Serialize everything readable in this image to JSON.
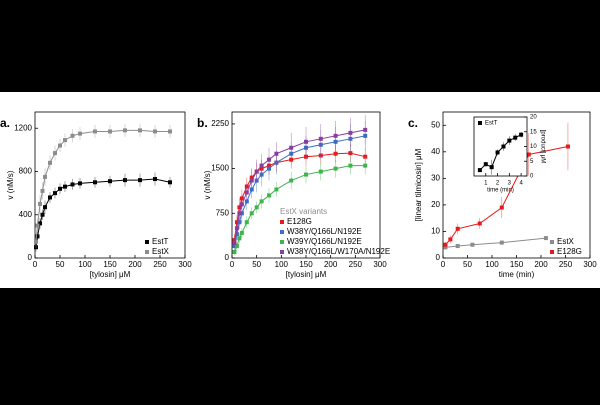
{
  "chart_data": [
    {
      "type": "scatter",
      "label": "a.",
      "xlabel": "[tylosin]  μM",
      "ylabel": "v (nM/s)",
      "xlim": [
        0,
        300
      ],
      "xticks": [
        0,
        50,
        100,
        150,
        200,
        250,
        300
      ],
      "ylim": [
        0,
        1350
      ],
      "yticks": [
        0,
        400,
        800,
        1200
      ],
      "legend": "lower right",
      "series": [
        {
          "name": "EstT",
          "color": "#000000",
          "x": [
            2,
            5,
            10,
            15,
            20,
            30,
            40,
            50,
            60,
            75,
            90,
            120,
            150,
            180,
            210,
            240,
            270
          ],
          "values": [
            100,
            200,
            320,
            400,
            470,
            560,
            600,
            640,
            660,
            680,
            690,
            700,
            710,
            720,
            720,
            730,
            700
          ],
          "errors": [
            40,
            40,
            50,
            50,
            60,
            50,
            50,
            50,
            50,
            50,
            50,
            50,
            50,
            60,
            60,
            60,
            50
          ]
        },
        {
          "name": "EstX",
          "color": "#8c8c8c",
          "x": [
            2,
            5,
            10,
            15,
            20,
            30,
            40,
            50,
            60,
            75,
            90,
            120,
            150,
            180,
            210,
            240,
            270
          ],
          "values": [
            150,
            300,
            500,
            620,
            750,
            880,
            970,
            1040,
            1090,
            1130,
            1150,
            1170,
            1170,
            1180,
            1180,
            1170,
            1170
          ],
          "errors": [
            60,
            60,
            80,
            80,
            80,
            70,
            70,
            60,
            60,
            60,
            60,
            60,
            60,
            60,
            60,
            60,
            60
          ]
        }
      ]
    },
    {
      "type": "scatter",
      "label": "b.",
      "xlabel": "[tylosin]  μM",
      "ylabel": "v (nM/s)",
      "xlim": [
        0,
        300
      ],
      "xticks": [
        0,
        50,
        100,
        150,
        200,
        250,
        300
      ],
      "ylim": [
        0,
        2450
      ],
      "yticks": [
        0,
        750,
        1500,
        2250
      ],
      "legend": "lower right",
      "legend_title": "EstX variants",
      "series": [
        {
          "name": "E128G",
          "color": "#e8191c",
          "x": [
            5,
            10,
            15,
            20,
            30,
            40,
            50,
            60,
            75,
            90,
            120,
            150,
            180,
            210,
            240,
            270
          ],
          "values": [
            300,
            600,
            850,
            1000,
            1200,
            1350,
            1450,
            1500,
            1550,
            1600,
            1650,
            1700,
            1720,
            1750,
            1760,
            1700
          ],
          "errors": [
            100,
            120,
            150,
            150,
            150,
            150,
            150,
            150,
            150,
            150,
            150,
            150,
            150,
            150,
            150,
            150
          ]
        },
        {
          "name": "W38Y/Q166L/N192E",
          "color": "#3a6fc4",
          "x": [
            5,
            10,
            15,
            20,
            30,
            40,
            50,
            60,
            75,
            90,
            120,
            150,
            180,
            210,
            240,
            270
          ],
          "values": [
            200,
            400,
            600,
            750,
            950,
            1150,
            1300,
            1400,
            1500,
            1600,
            1750,
            1850,
            1900,
            1950,
            2000,
            2050
          ],
          "errors": [
            80,
            100,
            120,
            150,
            150,
            150,
            200,
            200,
            200,
            200,
            200,
            200,
            250,
            250,
            250,
            250
          ]
        },
        {
          "name": "W39Y/Q166L/N192E",
          "color": "#3cb54a",
          "x": [
            5,
            10,
            15,
            20,
            30,
            40,
            50,
            60,
            75,
            90,
            120,
            150,
            180,
            210,
            240,
            270
          ],
          "values": [
            100,
            200,
            330,
            420,
            600,
            750,
            850,
            950,
            1050,
            1150,
            1300,
            1400,
            1450,
            1500,
            1550,
            1550
          ],
          "errors": [
            50,
            60,
            80,
            80,
            100,
            100,
            100,
            120,
            120,
            120,
            150,
            150,
            150,
            150,
            150,
            150
          ]
        },
        {
          "name": "W38Y/Q166L/W170A/N192E",
          "color": "#8a3d9e",
          "x": [
            5,
            10,
            15,
            20,
            30,
            40,
            50,
            60,
            75,
            90,
            120,
            150,
            180,
            210,
            240,
            270
          ],
          "values": [
            250,
            500,
            750,
            900,
            1100,
            1300,
            1450,
            1550,
            1650,
            1750,
            1850,
            1950,
            2000,
            2050,
            2100,
            2150
          ],
          "errors": [
            80,
            100,
            120,
            150,
            150,
            200,
            200,
            200,
            200,
            200,
            250,
            250,
            250,
            250,
            250,
            250
          ]
        }
      ]
    },
    {
      "type": "scatter",
      "label": "c.",
      "xlabel": "time (min)",
      "ylabel": "[linear tilmicosin]  μM",
      "xlim": [
        0,
        300
      ],
      "xticks": [
        0,
        50,
        100,
        150,
        200,
        250,
        300
      ],
      "ylim": [
        0,
        55
      ],
      "yticks": [
        0,
        10,
        20,
        30,
        40,
        50
      ],
      "legend": "lower right",
      "series": [
        {
          "name": "EstX",
          "color": "#8c8c8c",
          "x": [
            5,
            30,
            60,
            120,
            210
          ],
          "values": [
            4,
            4.5,
            5,
            5.8,
            7.5
          ],
          "errors": [
            0.5,
            0.5,
            0.5,
            0.5,
            0.5
          ]
        },
        {
          "name": "E128G",
          "color": "#e8191c",
          "x": [
            5,
            15,
            30,
            75,
            120,
            175,
            255
          ],
          "values": [
            5,
            7,
            11,
            13,
            19,
            39,
            42
          ],
          "errors": [
            1,
            1.5,
            2,
            2,
            4,
            8,
            9
          ]
        }
      ]
    },
    {
      "type": "scatter",
      "xlabel": "time (min)",
      "ylabel": "[product] μM",
      "y_axis_position": "right",
      "xlim": [
        0,
        4.5
      ],
      "xticks": [
        1,
        2,
        3,
        4
      ],
      "ylim": [
        0,
        20
      ],
      "yticks": [
        0,
        5,
        10,
        15,
        20
      ],
      "legend": "upper left",
      "series": [
        {
          "name": "EstT",
          "color": "#000000",
          "x": [
            0.5,
            1,
            1.5,
            2,
            2.5,
            3,
            3.5,
            4
          ],
          "values": [
            2,
            4,
            3,
            8,
            10,
            12,
            13,
            14
          ],
          "errors": [
            0.6,
            0.8,
            2.5,
            1,
            1.5,
            1.5,
            1.2,
            1
          ]
        }
      ]
    }
  ]
}
